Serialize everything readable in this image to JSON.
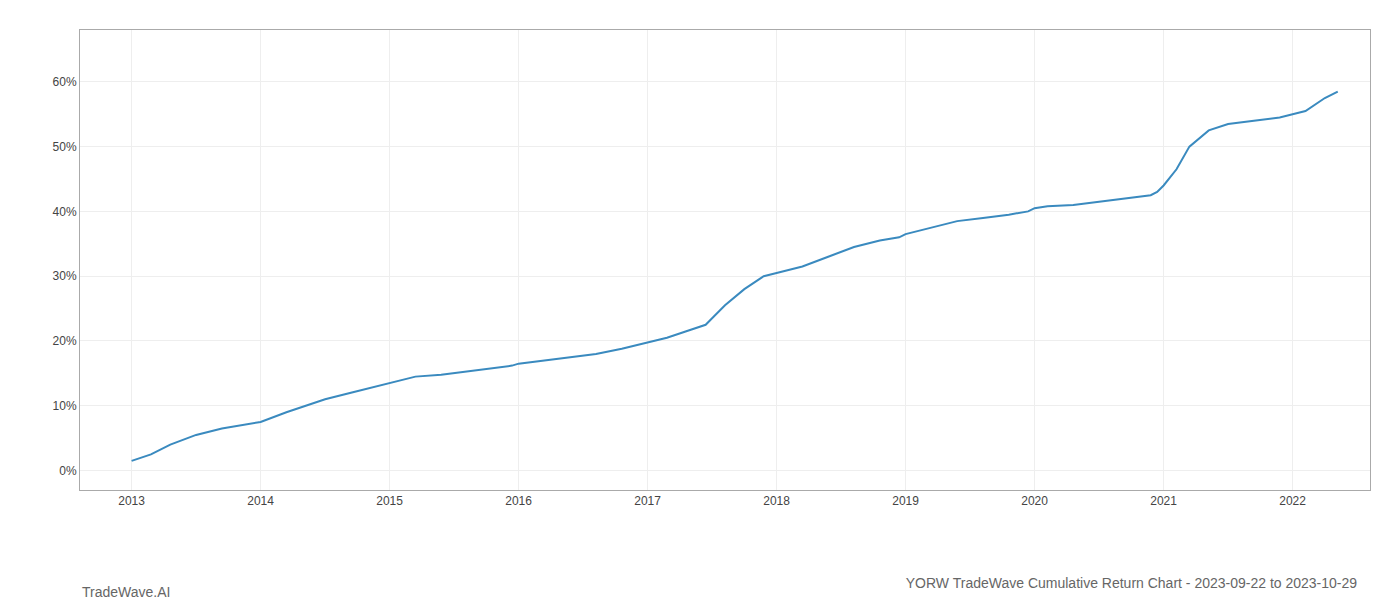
{
  "chart_data": {
    "type": "line",
    "title": "YORW TradeWave Cumulative Return Chart - 2023-09-22 to 2023-10-29",
    "annotations": [
      "TradeWave.AI"
    ],
    "x": [
      2013.0,
      2013.15,
      2013.3,
      2013.5,
      2013.7,
      2013.85,
      2014.0,
      2014.2,
      2014.5,
      2014.7,
      2014.9,
      2015.0,
      2015.1,
      2015.2,
      2015.4,
      2015.6,
      2015.8,
      2015.95,
      2016.0,
      2016.2,
      2016.4,
      2016.6,
      2016.8,
      2016.95,
      2017.0,
      2017.15,
      2017.3,
      2017.45,
      2017.5,
      2017.6,
      2017.75,
      2017.9,
      2018.0,
      2018.2,
      2018.4,
      2018.6,
      2018.8,
      2018.95,
      2019.0,
      2019.2,
      2019.4,
      2019.6,
      2019.8,
      2019.95,
      2020.0,
      2020.1,
      2020.3,
      2020.5,
      2020.7,
      2020.9,
      2020.95,
      2021.0,
      2021.1,
      2021.2,
      2021.35,
      2021.5,
      2021.7,
      2021.9,
      2022.0,
      2022.1,
      2022.25,
      2022.35
    ],
    "values": [
      1.5,
      2.5,
      4.0,
      5.5,
      6.5,
      7.0,
      7.5,
      9.0,
      11.0,
      12.0,
      13.0,
      13.5,
      14.0,
      14.5,
      14.8,
      15.3,
      15.8,
      16.2,
      16.5,
      17.0,
      17.5,
      18.0,
      18.8,
      19.5,
      19.8,
      20.5,
      21.5,
      22.5,
      23.5,
      25.5,
      28.0,
      30.0,
      30.5,
      31.5,
      33.0,
      34.5,
      35.5,
      36.0,
      36.5,
      37.5,
      38.5,
      39.0,
      39.5,
      40.0,
      40.5,
      40.8,
      41.0,
      41.5,
      42.0,
      42.5,
      43.0,
      44.0,
      46.5,
      50.0,
      52.5,
      53.5,
      54.0,
      54.5,
      55.0,
      55.5,
      57.5,
      58.5
    ],
    "color": "#3a8abf",
    "xlim": [
      2012.6,
      2022.6
    ],
    "ylim": [
      -3,
      68
    ],
    "xticks": [
      2013,
      2014,
      2015,
      2016,
      2017,
      2018,
      2019,
      2020,
      2021,
      2022
    ],
    "yticks": [
      {
        "value": 0,
        "label": "0%"
      },
      {
        "value": 10,
        "label": "10%"
      },
      {
        "value": 20,
        "label": "20%"
      },
      {
        "value": 30,
        "label": "30%"
      },
      {
        "value": 40,
        "label": "40%"
      },
      {
        "value": 50,
        "label": "50%"
      },
      {
        "value": 60,
        "label": "60%"
      }
    ],
    "grid": true
  }
}
